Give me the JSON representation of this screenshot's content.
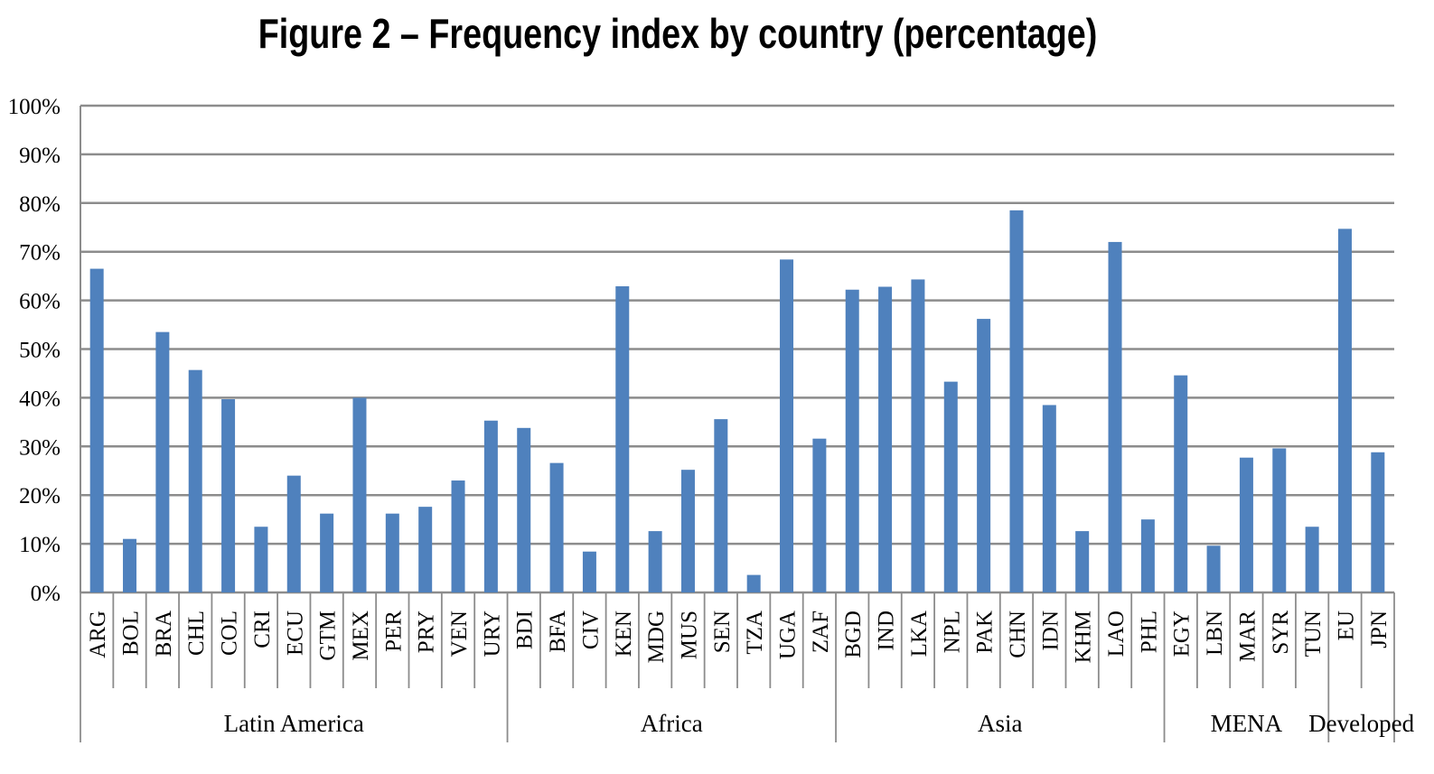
{
  "chart_data": {
    "type": "bar",
    "title": "Figure 2 – Frequency index by country (percentage)",
    "xlabel": "",
    "ylabel": "",
    "ylim": [
      0,
      100
    ],
    "y_ticks": [
      "0%",
      "10%",
      "20%",
      "30%",
      "40%",
      "50%",
      "60%",
      "70%",
      "80%",
      "90%",
      "100%"
    ],
    "grid": true,
    "bar_color": "#4f81bd",
    "categories": [
      "ARG",
      "BOL",
      "BRA",
      "CHL",
      "COL",
      "CRI",
      "ECU",
      "GTM",
      "MEX",
      "PER",
      "PRY",
      "VEN",
      "URY",
      "BDI",
      "BFA",
      "CIV",
      "KEN",
      "MDG",
      "MUS",
      "SEN",
      "TZA",
      "UGA",
      "ZAF",
      "BGD",
      "IND",
      "LKA",
      "NPL",
      "PAK",
      "CHN",
      "IDN",
      "KHM",
      "LAO",
      "PHL",
      "EGY",
      "LBN",
      "MAR",
      "SYR",
      "TUN",
      "EU",
      "JPN"
    ],
    "values": [
      66.5,
      11,
      53.5,
      45.7,
      39.7,
      13.5,
      24,
      16.2,
      40,
      16.2,
      17.6,
      23,
      35.3,
      33.8,
      26.6,
      8.4,
      62.9,
      12.6,
      25.2,
      35.6,
      3.6,
      68.4,
      31.6,
      62.2,
      62.8,
      64.3,
      43.3,
      56.2,
      78.5,
      38.5,
      12.6,
      72,
      15,
      44.6,
      9.6,
      27.7,
      29.6,
      13.5,
      74.7,
      28.8
    ],
    "groups": [
      {
        "label": "Latin America",
        "count": 13
      },
      {
        "label": "Africa",
        "count": 10
      },
      {
        "label": "Asia",
        "count": 10
      },
      {
        "label": "MENA",
        "count": 5
      },
      {
        "label": "Developed",
        "count": 2
      }
    ]
  }
}
